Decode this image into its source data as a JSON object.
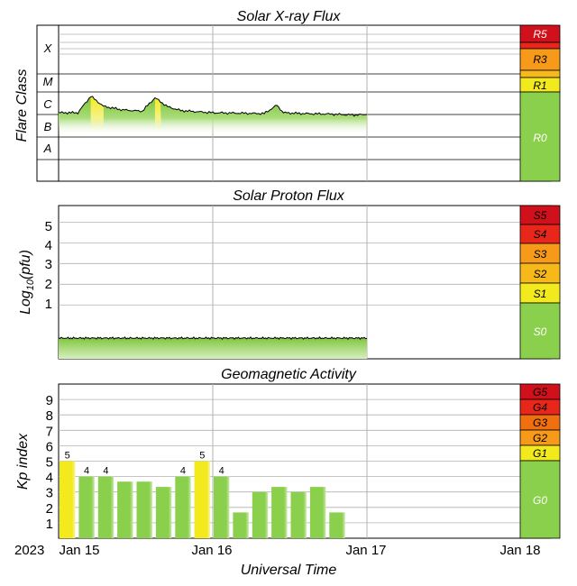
{
  "colors": {
    "green": "#8bd04c",
    "yellow": "#f2ea1c",
    "orange": "#f79a1a",
    "dark_orange": "#f07010",
    "red": "#e8261a",
    "dark_red": "#d0101a",
    "grid": "#b0b0b0"
  },
  "x_axis": {
    "year": "2023",
    "ticks": [
      "Jan 15",
      "Jan 16",
      "Jan 17",
      "Jan 18"
    ],
    "label": "Universal Time"
  },
  "xray": {
    "title": "Solar X-ray Flux",
    "ylabel": "Flare Class",
    "classes": [
      "X",
      "M",
      "C",
      "B",
      "A"
    ],
    "scale": [
      {
        "label": "R5",
        "color": "#d0101a"
      },
      {
        "label": "R3",
        "color": "#f79a1a"
      },
      {
        "label": "R1",
        "color": "#f2ea1c"
      },
      {
        "label": "R0",
        "color": "#8bd04c"
      }
    ]
  },
  "proton": {
    "title": "Solar Proton Flux",
    "ylabel_main": "Log",
    "ylabel_sub": "10",
    "ylabel_end": "(pfu)",
    "ticks": [
      "5",
      "4",
      "3",
      "2",
      "1"
    ],
    "scale": [
      {
        "label": "S5",
        "color": "#d0101a"
      },
      {
        "label": "S4",
        "color": "#e8261a"
      },
      {
        "label": "S3",
        "color": "#f79a1a"
      },
      {
        "label": "S2",
        "color": "#f7b81a"
      },
      {
        "label": "S1",
        "color": "#f2ea1c"
      },
      {
        "label": "S0",
        "color": "#8bd04c"
      }
    ]
  },
  "geo": {
    "title": "Geomagnetic Activity",
    "ylabel": "Kp index",
    "ticks": [
      "9",
      "8",
      "7",
      "6",
      "5",
      "4",
      "3",
      "2",
      "1"
    ],
    "scale": [
      {
        "label": "G5",
        "color": "#d0101a"
      },
      {
        "label": "G4",
        "color": "#e8261a"
      },
      {
        "label": "G3",
        "color": "#f07010"
      },
      {
        "label": "G2",
        "color": "#f79a1a"
      },
      {
        "label": "G1",
        "color": "#f2ea1c"
      },
      {
        "label": "G0",
        "color": "#8bd04c"
      }
    ]
  },
  "chart_data": [
    {
      "type": "area",
      "title": "Solar X-ray Flux",
      "ylabel": "Flare Class",
      "y_scale": "log",
      "y_categories": [
        "A",
        "B",
        "C",
        "M",
        "X"
      ],
      "x_range": [
        "2023-01-15T00:00",
        "2023-01-18T00:00"
      ],
      "series": [
        {
          "x": [
            "2023-01-15T00:00",
            "2023-01-15T03:00",
            "2023-01-15T05:00",
            "2023-01-15T07:00",
            "2023-01-15T10:00",
            "2023-01-15T13:00",
            "2023-01-15T15:00",
            "2023-01-15T17:00",
            "2023-01-15T19:00",
            "2023-01-15T22:00",
            "2023-01-16T00:00",
            "2023-01-16T04:00",
            "2023-01-16T08:00",
            "2023-01-16T10:00",
            "2023-01-16T11:00",
            "2023-01-16T14:00",
            "2023-01-16T18:00",
            "2023-01-16T22:00",
            "2023-01-17T00:00"
          ],
          "y": [
            1.2e-06,
            1.2e-06,
            6.5e-06,
            2.3e-06,
            1.6e-06,
            1.4e-06,
            5.5e-06,
            2.2e-06,
            1.5e-06,
            1.3e-06,
            1.2e-06,
            1.15e-06,
            1.1e-06,
            2.6e-06,
            1.2e-06,
            1.1e-06,
            1.05e-06,
            9.5e-07,
            1e-06
          ]
        }
      ]
    },
    {
      "type": "area",
      "title": "Solar Proton Flux",
      "ylabel": "Log10(pfu)",
      "y_ticks": [
        1,
        2,
        3,
        4,
        5
      ],
      "ylim": [
        -1.6,
        5.8
      ],
      "x_range": [
        "2023-01-15T00:00",
        "2023-01-18T00:00"
      ],
      "series": [
        {
          "x": [
            "2023-01-15T00:00",
            "2023-01-16T00:00",
            "2023-01-17T00:00"
          ],
          "y": [
            -0.6,
            -0.6,
            -0.6
          ]
        }
      ]
    },
    {
      "type": "bar",
      "title": "Geomagnetic Activity",
      "ylabel": "Kp index",
      "ylim": [
        0,
        10
      ],
      "x_range": [
        "2023-01-15T00:00",
        "2023-01-18T00:00"
      ],
      "categories": [
        "Jan 15 00-03",
        "Jan 15 03-06",
        "Jan 15 06-09",
        "Jan 15 09-12",
        "Jan 15 12-15",
        "Jan 15 15-18",
        "Jan 15 18-21",
        "Jan 15 21-24",
        "Jan 16 00-03",
        "Jan 16 03-06",
        "Jan 16 06-09",
        "Jan 16 09-12",
        "Jan 16 12-15",
        "Jan 16 15-18",
        "Jan 16 18-21",
        "Jan 16 21-24"
      ],
      "values": [
        5,
        4,
        4,
        3.67,
        3.67,
        3.33,
        4,
        5,
        4,
        1.67,
        3,
        3.33,
        3,
        3.33,
        1.67,
        0
      ],
      "labels": [
        "5",
        "4",
        "4",
        "",
        "",
        "",
        "4",
        "5",
        "4",
        "",
        "",
        "",
        "",
        "",
        "",
        ""
      ]
    }
  ]
}
